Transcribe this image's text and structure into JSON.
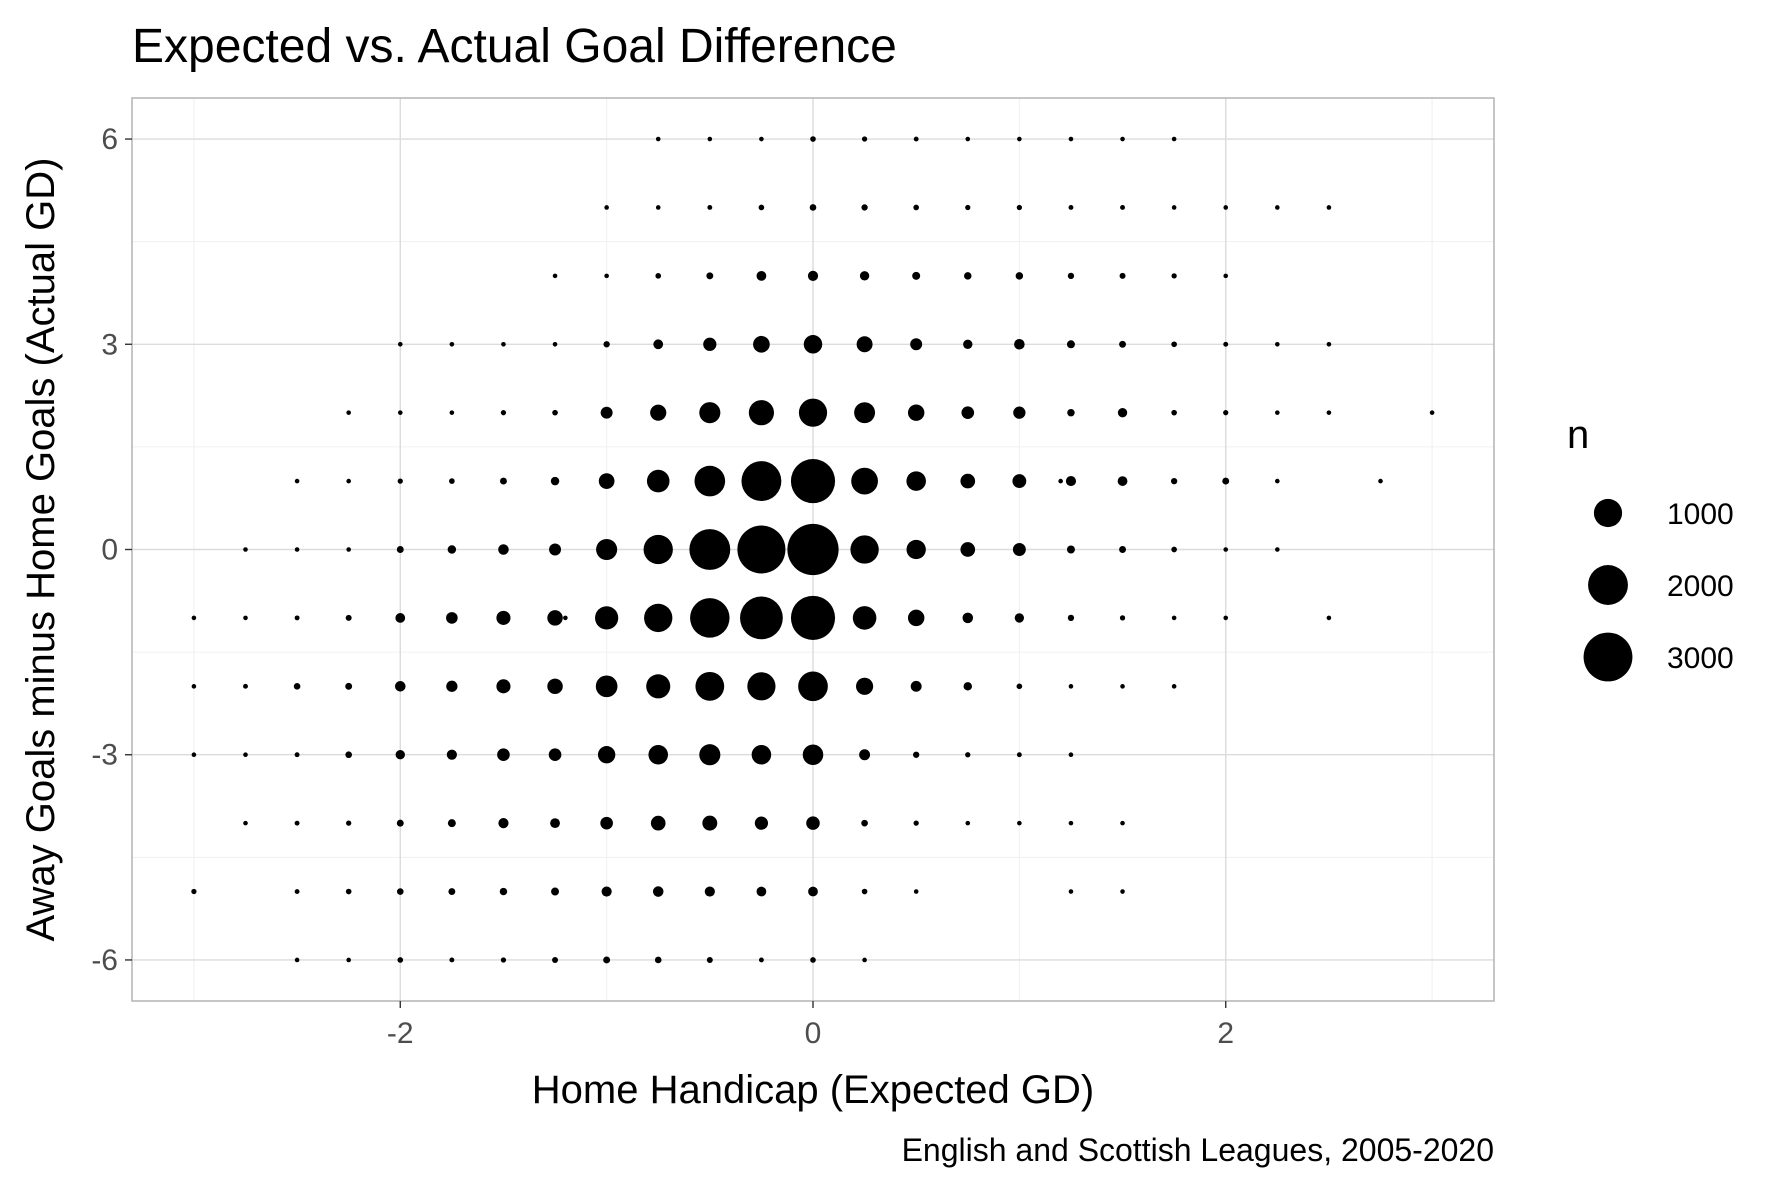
{
  "chart_data": {
    "type": "scatter",
    "title": "Expected vs. Actual Goal Difference",
    "xlabel": "Home Handicap (Expected GD)",
    "ylabel": "Away Goals minus Home Goals (Actual GD)",
    "caption": "English and Scottish Leagues, 2005-2020",
    "xlim": [
      -3.3,
      3.3
    ],
    "ylim": [
      -6.6,
      6.6
    ],
    "x_ticks": [
      -2,
      0,
      2
    ],
    "x_tick_labels": [
      "-2",
      "0",
      "2"
    ],
    "y_ticks": [
      -6,
      -3,
      0,
      3,
      6
    ],
    "y_tick_labels": [
      "-6",
      "-3",
      "0",
      "3",
      "6"
    ],
    "grid": true,
    "point_color": "#000000",
    "legend": {
      "title": "n",
      "placement": "right",
      "values": [
        1000,
        2000,
        3000
      ],
      "labels": [
        "1000",
        "2000",
        "3000"
      ]
    },
    "size_max_n": 3400,
    "points": [
      {
        "x": -0.75,
        "y": 6,
        "n": 25
      },
      {
        "x": -0.5,
        "y": 6,
        "n": 25
      },
      {
        "x": -0.25,
        "y": 6,
        "n": 25
      },
      {
        "x": 0,
        "y": 6,
        "n": 40
      },
      {
        "x": 0.25,
        "y": 6,
        "n": 35
      },
      {
        "x": 0.5,
        "y": 6,
        "n": 30
      },
      {
        "x": 0.75,
        "y": 6,
        "n": 25
      },
      {
        "x": 1,
        "y": 6,
        "n": 25
      },
      {
        "x": 1.25,
        "y": 6,
        "n": 25
      },
      {
        "x": 1.5,
        "y": 6,
        "n": 25
      },
      {
        "x": 1.75,
        "y": 6,
        "n": 20
      },
      {
        "x": -1,
        "y": 5,
        "n": 25
      },
      {
        "x": -0.75,
        "y": 5,
        "n": 25
      },
      {
        "x": -0.5,
        "y": 5,
        "n": 30
      },
      {
        "x": -0.25,
        "y": 5,
        "n": 40
      },
      {
        "x": 0,
        "y": 5,
        "n": 55
      },
      {
        "x": 0.25,
        "y": 5,
        "n": 50
      },
      {
        "x": 0.5,
        "y": 5,
        "n": 40
      },
      {
        "x": 0.75,
        "y": 5,
        "n": 35
      },
      {
        "x": 1,
        "y": 5,
        "n": 35
      },
      {
        "x": 1.25,
        "y": 5,
        "n": 30
      },
      {
        "x": 1.5,
        "y": 5,
        "n": 30
      },
      {
        "x": 1.75,
        "y": 5,
        "n": 25
      },
      {
        "x": 2,
        "y": 5,
        "n": 20
      },
      {
        "x": 2.25,
        "y": 5,
        "n": 15
      },
      {
        "x": 2.5,
        "y": 5,
        "n": 15
      },
      {
        "x": -1.25,
        "y": 4,
        "n": 25
      },
      {
        "x": -1,
        "y": 4,
        "n": 25
      },
      {
        "x": -0.75,
        "y": 4,
        "n": 40
      },
      {
        "x": -0.5,
        "y": 4,
        "n": 60
      },
      {
        "x": -0.25,
        "y": 4,
        "n": 120
      },
      {
        "x": 0,
        "y": 4,
        "n": 130
      },
      {
        "x": 0.25,
        "y": 4,
        "n": 110
      },
      {
        "x": 0.5,
        "y": 4,
        "n": 80
      },
      {
        "x": 0.75,
        "y": 4,
        "n": 70
      },
      {
        "x": 1,
        "y": 4,
        "n": 70
      },
      {
        "x": 1.25,
        "y": 4,
        "n": 50
      },
      {
        "x": 1.5,
        "y": 4,
        "n": 45
      },
      {
        "x": 1.75,
        "y": 4,
        "n": 35
      },
      {
        "x": 2,
        "y": 4,
        "n": 25
      },
      {
        "x": -2,
        "y": 3,
        "n": 20
      },
      {
        "x": -1.75,
        "y": 3,
        "n": 20
      },
      {
        "x": -1.5,
        "y": 3,
        "n": 20
      },
      {
        "x": -1.25,
        "y": 3,
        "n": 25
      },
      {
        "x": -1,
        "y": 3,
        "n": 50
      },
      {
        "x": -0.75,
        "y": 3,
        "n": 120
      },
      {
        "x": -0.5,
        "y": 3,
        "n": 220
      },
      {
        "x": -0.25,
        "y": 3,
        "n": 350
      },
      {
        "x": 0,
        "y": 3,
        "n": 430
      },
      {
        "x": 0.25,
        "y": 3,
        "n": 320
      },
      {
        "x": 0.5,
        "y": 3,
        "n": 180
      },
      {
        "x": 0.75,
        "y": 3,
        "n": 110
      },
      {
        "x": 1,
        "y": 3,
        "n": 140
      },
      {
        "x": 1.25,
        "y": 3,
        "n": 80
      },
      {
        "x": 1.5,
        "y": 3,
        "n": 60
      },
      {
        "x": 1.75,
        "y": 3,
        "n": 40
      },
      {
        "x": 2,
        "y": 3,
        "n": 30
      },
      {
        "x": 2.25,
        "y": 3,
        "n": 20
      },
      {
        "x": 2.5,
        "y": 3,
        "n": 20
      },
      {
        "x": -2.25,
        "y": 2,
        "n": 20
      },
      {
        "x": -2,
        "y": 2,
        "n": 20
      },
      {
        "x": -1.75,
        "y": 2,
        "n": 15
      },
      {
        "x": -1.5,
        "y": 2,
        "n": 35
      },
      {
        "x": -1.25,
        "y": 2,
        "n": 40
      },
      {
        "x": -1,
        "y": 2,
        "n": 180
      },
      {
        "x": -0.75,
        "y": 2,
        "n": 330
      },
      {
        "x": -0.5,
        "y": 2,
        "n": 560
      },
      {
        "x": -0.25,
        "y": 2,
        "n": 800
      },
      {
        "x": 0,
        "y": 2,
        "n": 1000
      },
      {
        "x": 0.25,
        "y": 2,
        "n": 550
      },
      {
        "x": 0.5,
        "y": 2,
        "n": 340
      },
      {
        "x": 0.75,
        "y": 2,
        "n": 200
      },
      {
        "x": 1,
        "y": 2,
        "n": 190
      },
      {
        "x": 1.25,
        "y": 2,
        "n": 70
      },
      {
        "x": 1.5,
        "y": 2,
        "n": 110
      },
      {
        "x": 1.75,
        "y": 2,
        "n": 40
      },
      {
        "x": 2,
        "y": 2,
        "n": 35
      },
      {
        "x": 2.25,
        "y": 2,
        "n": 25
      },
      {
        "x": 2.5,
        "y": 2,
        "n": 20
      },
      {
        "x": 3,
        "y": 2,
        "n": 20
      },
      {
        "x": -2.5,
        "y": 1,
        "n": 25
      },
      {
        "x": -2.25,
        "y": 1,
        "n": 25
      },
      {
        "x": -2,
        "y": 1,
        "n": 35
      },
      {
        "x": -1.75,
        "y": 1,
        "n": 40
      },
      {
        "x": -1.5,
        "y": 1,
        "n": 60
      },
      {
        "x": -1.25,
        "y": 1,
        "n": 90
      },
      {
        "x": -1,
        "y": 1,
        "n": 310
      },
      {
        "x": -0.75,
        "y": 1,
        "n": 640
      },
      {
        "x": -0.5,
        "y": 1,
        "n": 1180
      },
      {
        "x": -0.25,
        "y": 1,
        "n": 2000
      },
      {
        "x": 0,
        "y": 1,
        "n": 2450
      },
      {
        "x": 0.25,
        "y": 1,
        "n": 900
      },
      {
        "x": 0.5,
        "y": 1,
        "n": 480
      },
      {
        "x": 0.75,
        "y": 1,
        "n": 270
      },
      {
        "x": 1,
        "y": 1,
        "n": 240
      },
      {
        "x": 1.2,
        "y": 1,
        "n": 20
      },
      {
        "x": 1.25,
        "y": 1,
        "n": 130
      },
      {
        "x": 1.5,
        "y": 1,
        "n": 120
      },
      {
        "x": 1.75,
        "y": 1,
        "n": 50
      },
      {
        "x": 2,
        "y": 1,
        "n": 60
      },
      {
        "x": 2.25,
        "y": 1,
        "n": 20
      },
      {
        "x": 2.75,
        "y": 1,
        "n": 20
      },
      {
        "x": -2.75,
        "y": 0,
        "n": 20
      },
      {
        "x": -2.5,
        "y": 0,
        "n": 25
      },
      {
        "x": -2.25,
        "y": 0,
        "n": 25
      },
      {
        "x": -2,
        "y": 0,
        "n": 60
      },
      {
        "x": -1.75,
        "y": 0,
        "n": 90
      },
      {
        "x": -1.5,
        "y": 0,
        "n": 140
      },
      {
        "x": -1.25,
        "y": 0,
        "n": 180
      },
      {
        "x": -1,
        "y": 0,
        "n": 560
      },
      {
        "x": -0.75,
        "y": 0,
        "n": 1080
      },
      {
        "x": -0.5,
        "y": 0,
        "n": 2100
      },
      {
        "x": -0.25,
        "y": 0,
        "n": 2900
      },
      {
        "x": 0,
        "y": 0,
        "n": 3300
      },
      {
        "x": 0.25,
        "y": 0,
        "n": 1010
      },
      {
        "x": 0.5,
        "y": 0,
        "n": 470
      },
      {
        "x": 0.75,
        "y": 0,
        "n": 270
      },
      {
        "x": 1,
        "y": 0,
        "n": 210
      },
      {
        "x": 1.25,
        "y": 0,
        "n": 80
      },
      {
        "x": 1.5,
        "y": 0,
        "n": 60
      },
      {
        "x": 1.75,
        "y": 0,
        "n": 40
      },
      {
        "x": 2,
        "y": 0,
        "n": 25
      },
      {
        "x": 2.25,
        "y": 0,
        "n": 20
      },
      {
        "x": -3,
        "y": -1,
        "n": 20
      },
      {
        "x": -2.75,
        "y": -1,
        "n": 25
      },
      {
        "x": -2.5,
        "y": -1,
        "n": 30
      },
      {
        "x": -2.25,
        "y": -1,
        "n": 45
      },
      {
        "x": -2,
        "y": -1,
        "n": 120
      },
      {
        "x": -1.75,
        "y": -1,
        "n": 170
      },
      {
        "x": -1.5,
        "y": -1,
        "n": 250
      },
      {
        "x": -1.25,
        "y": -1,
        "n": 300
      },
      {
        "x": -1.2,
        "y": -1,
        "n": 20
      },
      {
        "x": -1,
        "y": -1,
        "n": 680
      },
      {
        "x": -0.75,
        "y": -1,
        "n": 1010
      },
      {
        "x": -0.5,
        "y": -1,
        "n": 1960
      },
      {
        "x": -0.25,
        "y": -1,
        "n": 2300
      },
      {
        "x": 0,
        "y": -1,
        "n": 2450
      },
      {
        "x": 0.25,
        "y": -1,
        "n": 700
      },
      {
        "x": 0.5,
        "y": -1,
        "n": 340
      },
      {
        "x": 0.75,
        "y": -1,
        "n": 140
      },
      {
        "x": 1,
        "y": -1,
        "n": 110
      },
      {
        "x": 1.25,
        "y": -1,
        "n": 50
      },
      {
        "x": 1.5,
        "y": -1,
        "n": 35
      },
      {
        "x": 1.75,
        "y": -1,
        "n": 25
      },
      {
        "x": 2,
        "y": -1,
        "n": 20
      },
      {
        "x": 2.5,
        "y": -1,
        "n": 20
      },
      {
        "x": -3,
        "y": -2,
        "n": 20
      },
      {
        "x": -2.75,
        "y": -2,
        "n": 30
      },
      {
        "x": -2.5,
        "y": -2,
        "n": 55
      },
      {
        "x": -2.25,
        "y": -2,
        "n": 60
      },
      {
        "x": -2,
        "y": -2,
        "n": 140
      },
      {
        "x": -1.75,
        "y": -2,
        "n": 160
      },
      {
        "x": -1.5,
        "y": -2,
        "n": 250
      },
      {
        "x": -1.25,
        "y": -2,
        "n": 300
      },
      {
        "x": -1,
        "y": -2,
        "n": 590
      },
      {
        "x": -0.75,
        "y": -2,
        "n": 730
      },
      {
        "x": -0.5,
        "y": -2,
        "n": 1040
      },
      {
        "x": -0.25,
        "y": -2,
        "n": 1000
      },
      {
        "x": 0,
        "y": -2,
        "n": 1110
      },
      {
        "x": 0.25,
        "y": -2,
        "n": 370
      },
      {
        "x": 0.5,
        "y": -2,
        "n": 150
      },
      {
        "x": 0.75,
        "y": -2,
        "n": 90
      },
      {
        "x": 1,
        "y": -2,
        "n": 40
      },
      {
        "x": 1.25,
        "y": -2,
        "n": 25
      },
      {
        "x": 1.5,
        "y": -2,
        "n": 15
      },
      {
        "x": 1.75,
        "y": -2,
        "n": 20
      },
      {
        "x": -3,
        "y": -3,
        "n": 20
      },
      {
        "x": -2.75,
        "y": -3,
        "n": 25
      },
      {
        "x": -2.5,
        "y": -3,
        "n": 30
      },
      {
        "x": -2.25,
        "y": -3,
        "n": 55
      },
      {
        "x": -2,
        "y": -3,
        "n": 110
      },
      {
        "x": -1.75,
        "y": -3,
        "n": 130
      },
      {
        "x": -1.5,
        "y": -3,
        "n": 200
      },
      {
        "x": -1.25,
        "y": -3,
        "n": 200
      },
      {
        "x": -1,
        "y": -3,
        "n": 380
      },
      {
        "x": -0.75,
        "y": -3,
        "n": 480
      },
      {
        "x": -0.5,
        "y": -3,
        "n": 560
      },
      {
        "x": -0.25,
        "y": -3,
        "n": 480
      },
      {
        "x": 0,
        "y": -3,
        "n": 530
      },
      {
        "x": 0.25,
        "y": -3,
        "n": 150
      },
      {
        "x": 0.5,
        "y": -3,
        "n": 50
      },
      {
        "x": 0.75,
        "y": -3,
        "n": 35
      },
      {
        "x": 1,
        "y": -3,
        "n": 30
      },
      {
        "x": 1.25,
        "y": -3,
        "n": 20
      },
      {
        "x": -2.75,
        "y": -4,
        "n": 25
      },
      {
        "x": -2.5,
        "y": -4,
        "n": 30
      },
      {
        "x": -2.25,
        "y": -4,
        "n": 35
      },
      {
        "x": -2,
        "y": -4,
        "n": 60
      },
      {
        "x": -1.75,
        "y": -4,
        "n": 80
      },
      {
        "x": -1.5,
        "y": -4,
        "n": 130
      },
      {
        "x": -1.25,
        "y": -4,
        "n": 120
      },
      {
        "x": -1,
        "y": -4,
        "n": 200
      },
      {
        "x": -0.75,
        "y": -4,
        "n": 270
      },
      {
        "x": -0.5,
        "y": -4,
        "n": 280
      },
      {
        "x": -0.25,
        "y": -4,
        "n": 220
      },
      {
        "x": 0,
        "y": -4,
        "n": 230
      },
      {
        "x": 0.25,
        "y": -4,
        "n": 55
      },
      {
        "x": 0.5,
        "y": -4,
        "n": 35
      },
      {
        "x": 0.75,
        "y": -4,
        "n": 25
      },
      {
        "x": 1,
        "y": -4,
        "n": 20
      },
      {
        "x": 1.25,
        "y": -4,
        "n": 20
      },
      {
        "x": 1.5,
        "y": -4,
        "n": 20
      },
      {
        "x": -3,
        "y": -5,
        "n": 35
      },
      {
        "x": -2.5,
        "y": -5,
        "n": 30
      },
      {
        "x": -2.25,
        "y": -5,
        "n": 40
      },
      {
        "x": -2,
        "y": -5,
        "n": 55
      },
      {
        "x": -1.75,
        "y": -5,
        "n": 60
      },
      {
        "x": -1.5,
        "y": -5,
        "n": 70
      },
      {
        "x": -1.25,
        "y": -5,
        "n": 80
      },
      {
        "x": -1,
        "y": -5,
        "n": 130
      },
      {
        "x": -0.75,
        "y": -5,
        "n": 140
      },
      {
        "x": -0.5,
        "y": -5,
        "n": 130
      },
      {
        "x": -0.25,
        "y": -5,
        "n": 120
      },
      {
        "x": 0,
        "y": -5,
        "n": 120
      },
      {
        "x": 0.25,
        "y": -5,
        "n": 40
      },
      {
        "x": 0.5,
        "y": -5,
        "n": 20
      },
      {
        "x": 1.25,
        "y": -5,
        "n": 20
      },
      {
        "x": 1.5,
        "y": -5,
        "n": 20
      },
      {
        "x": -2.5,
        "y": -6,
        "n": 20
      },
      {
        "x": -2.25,
        "y": -6,
        "n": 25
      },
      {
        "x": -2,
        "y": -6,
        "n": 40
      },
      {
        "x": -1.75,
        "y": -6,
        "n": 30
      },
      {
        "x": -1.5,
        "y": -6,
        "n": 35
      },
      {
        "x": -1.25,
        "y": -6,
        "n": 45
      },
      {
        "x": -1,
        "y": -6,
        "n": 60
      },
      {
        "x": -0.75,
        "y": -6,
        "n": 55
      },
      {
        "x": -0.5,
        "y": -6,
        "n": 45
      },
      {
        "x": -0.25,
        "y": -6,
        "n": 30
      },
      {
        "x": 0,
        "y": -6,
        "n": 40
      },
      {
        "x": 0.25,
        "y": -6,
        "n": 25
      }
    ]
  }
}
